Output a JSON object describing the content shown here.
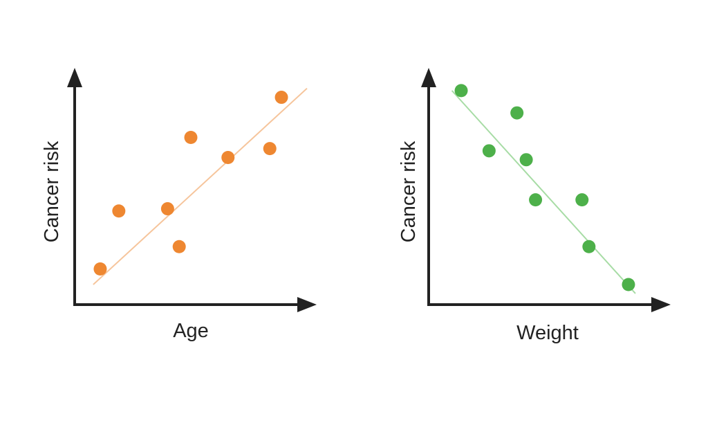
{
  "chart_data": [
    {
      "type": "scatter",
      "title": "",
      "xlabel": "Age",
      "ylabel": "Cancer risk",
      "colors": {
        "points": "#ee8731",
        "trendline": "#f6c59c",
        "axes": "#222222"
      },
      "xlim": [
        0,
        10
      ],
      "ylim": [
        0,
        10
      ],
      "trend": {
        "x": [
          0.8,
          10.0
        ],
        "y": [
          0.9,
          9.7
        ]
      },
      "points": [
        {
          "x": 1.1,
          "y": 1.6
        },
        {
          "x": 1.9,
          "y": 4.2
        },
        {
          "x": 4.0,
          "y": 4.3
        },
        {
          "x": 4.5,
          "y": 2.6
        },
        {
          "x": 5.0,
          "y": 7.5
        },
        {
          "x": 6.6,
          "y": 6.6
        },
        {
          "x": 8.4,
          "y": 7.0
        },
        {
          "x": 8.9,
          "y": 9.3
        }
      ],
      "legend": "none",
      "grid": false
    },
    {
      "type": "scatter",
      "title": "",
      "xlabel": "Weight",
      "ylabel": "Cancer risk",
      "colors": {
        "points": "#4db04a",
        "trendline": "#a7dca5",
        "axes": "#222222"
      },
      "xlim": [
        0,
        10
      ],
      "ylim": [
        0,
        10
      ],
      "trend": {
        "x": [
          1.0,
          8.9
        ],
        "y": [
          9.6,
          0.5
        ]
      },
      "points": [
        {
          "x": 1.4,
          "y": 9.6
        },
        {
          "x": 2.6,
          "y": 6.9
        },
        {
          "x": 3.8,
          "y": 8.6
        },
        {
          "x": 4.2,
          "y": 6.5
        },
        {
          "x": 4.6,
          "y": 4.7
        },
        {
          "x": 6.6,
          "y": 4.7
        },
        {
          "x": 6.9,
          "y": 2.6
        },
        {
          "x": 8.6,
          "y": 0.9
        }
      ],
      "legend": "none",
      "grid": false
    }
  ]
}
